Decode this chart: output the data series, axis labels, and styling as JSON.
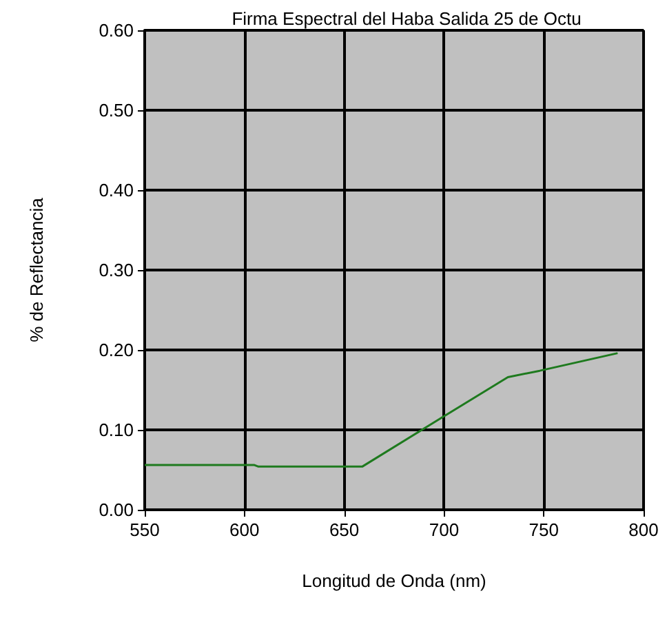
{
  "chart_data": {
    "type": "line",
    "title": "Firma Espectral del Haba Salida 25 de Octu",
    "xlabel": "Longitud de Onda (nm)",
    "ylabel": "% de Reflectancia",
    "series": [
      {
        "color": "#1e7a1e",
        "x": [
          550,
          605,
          607,
          659,
          698,
          732,
          748,
          787
        ],
        "values": [
          0.056,
          0.056,
          0.054,
          0.054,
          0.114,
          0.166,
          0.174,
          0.196
        ]
      }
    ],
    "xlim": [
      550,
      800
    ],
    "xticks": [
      550,
      600,
      650,
      700,
      750,
      800
    ],
    "ylim": [
      0,
      0.6
    ],
    "yticks": [
      {
        "value": 0,
        "label": "0.00"
      },
      {
        "value": 0.1,
        "label": "0.10"
      },
      {
        "value": 0.2,
        "label": "0.20"
      },
      {
        "value": 0.3,
        "label": "0.30"
      },
      {
        "value": 0.4,
        "label": "0.40"
      },
      {
        "value": 0.5,
        "label": "0.50"
      },
      {
        "value": 0.6,
        "label": "0.60"
      }
    ],
    "grid": true,
    "marker": "none",
    "line_style": "solid"
  }
}
